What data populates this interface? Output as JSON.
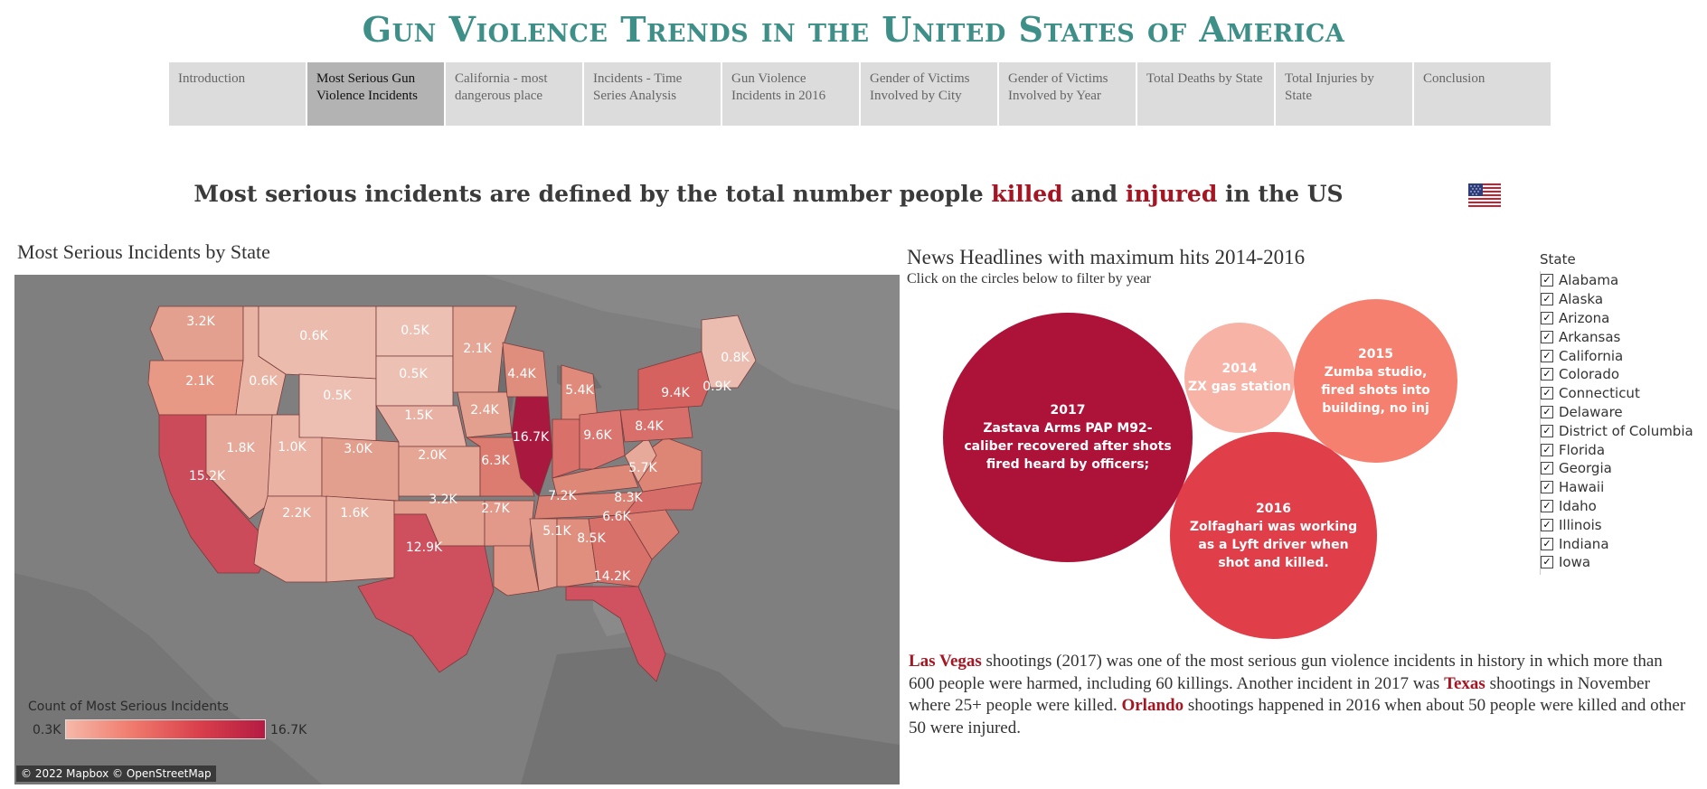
{
  "title": "Gun Violence Trends in the United States of America",
  "tabs": [
    {
      "label": "Introduction"
    },
    {
      "label": "Most Serious Gun Violence Incidents",
      "active": true
    },
    {
      "label": "California - most dangerous place"
    },
    {
      "label": "Incidents - Time Series Analysis"
    },
    {
      "label": "Gun Violence Incidents in 2016"
    },
    {
      "label": "Gender of Victims Involved by City"
    },
    {
      "label": "Gender of Victims Involved by Year"
    },
    {
      "label": "Total Deaths by State"
    },
    {
      "label": "Total Injuries by State"
    },
    {
      "label": "Conclusion"
    }
  ],
  "subtitle": {
    "part1": "Most serious incidents are defined by the total number people ",
    "killed": "killed",
    "part2": " and ",
    "injured": "injured",
    "part3": " in the US"
  },
  "map": {
    "title": "Most Serious Incidents by State",
    "labels": [
      "3.2K",
      "0.6K",
      "0.5K",
      "2.1K",
      "0.8K",
      "2.1K",
      "0.6K",
      "0.5K",
      "0.5K",
      "4.4K",
      "5.4K",
      "9.4K",
      "0.9K",
      "1.5K",
      "2.4K",
      "16.7K",
      "9.6K",
      "8.4K",
      "1.8K",
      "1.0K",
      "3.0K",
      "2.0K",
      "6.3K",
      "5.7K",
      "15.2K",
      "3.2K",
      "7.2K",
      "8.3K",
      "2.7K",
      "6.6K",
      "2.2K",
      "1.6K",
      "5.1K",
      "8.5K",
      "12.9K",
      "14.2K"
    ],
    "legend_title": "Count of Most Serious Incidents",
    "legend_min": "0.3K",
    "legend_max": "16.7K",
    "attribution": "© 2022 Mapbox © OpenStreetMap"
  },
  "news": {
    "title": "News Headlines with maximum hits 2014-2016",
    "subtitle": "Click on the circles below to filter by year",
    "bubbles": [
      {
        "year": "2017",
        "text": "Zastava Arms PAP M92-caliber recovered after shots fired heard by officers;",
        "color": "#ad1338"
      },
      {
        "year": "2014",
        "text": "ZX gas station",
        "color": "#f7b3a6"
      },
      {
        "year": "2015",
        "text": "Zumba studio, fired shots into building, no inj",
        "color": "#f5806f"
      },
      {
        "year": "2016",
        "text": "Zolfaghari was working as a Lyft driver when shot and killed.",
        "color": "#e03f49"
      }
    ]
  },
  "paragraph": {
    "city1": "Las Vegas",
    "t1": " shootings (2017) was one of the most serious gun violence incidents in history in which more than 600 people were harmed, including 60 killings. Another incident in 2017 was ",
    "city2": "Texas",
    "t2": " shootings in November where 25+ people were killed. ",
    "city3": "Orlando",
    "t3": " shootings happened in 2016 when about 50 people were killed and other 50 were injured."
  },
  "filter": {
    "title": "State",
    "states": [
      "Alabama",
      "Alaska",
      "Arizona",
      "Arkansas",
      "California",
      "Colorado",
      "Connecticut",
      "Delaware",
      "District of Columbia",
      "Florida",
      "Georgia",
      "Hawaii",
      "Idaho",
      "Illinois",
      "Indiana",
      "Iowa"
    ],
    "check": "✓"
  }
}
